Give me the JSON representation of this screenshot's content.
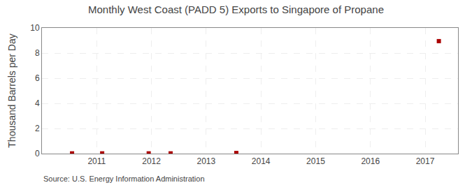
{
  "chart_data": {
    "type": "scatter",
    "title": "Monthly West Coast (PADD 5) Exports to Singapore of Propane",
    "y_label": "Thousand Barrels per Day",
    "annotations": [
      "Source: U.S. Energy Information Administration"
    ],
    "x": [
      2010.55,
      2011.1,
      2011.95,
      2012.35,
      2013.55,
      2017.25
    ],
    "values": [
      0.02,
      0.02,
      0.02,
      0.02,
      0.05,
      8.95
    ],
    "color": "#aa0000",
    "marker": "square",
    "xlim": [
      2010.0,
      2017.6
    ],
    "xticks": [
      2011,
      2012,
      2013,
      2014,
      2015,
      2016,
      2017
    ],
    "ylim": [
      0,
      10
    ],
    "yticks": [
      0,
      2,
      4,
      6,
      8,
      10
    ],
    "grid": true
  }
}
